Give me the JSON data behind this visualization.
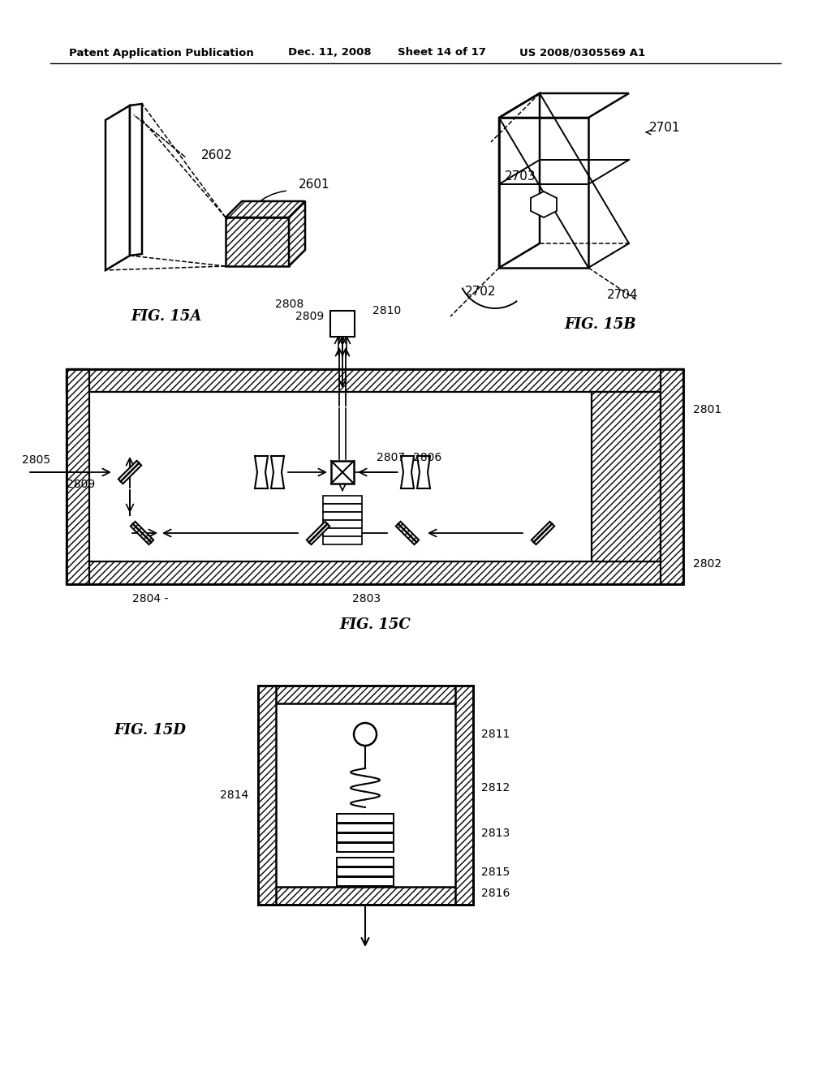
{
  "bg_color": "#ffffff",
  "header_text": "Patent Application Publication",
  "header_date": "Dec. 11, 2008",
  "header_sheet": "Sheet 14 of 17",
  "header_patent": "US 2008/0305569 A1",
  "fig15a_label": "FIG. 15A",
  "fig15b_label": "FIG. 15B",
  "fig15c_label": "FIG. 15C",
  "fig15d_label": "FIG. 15D",
  "text_color": "#000000",
  "line_color": "#000000"
}
